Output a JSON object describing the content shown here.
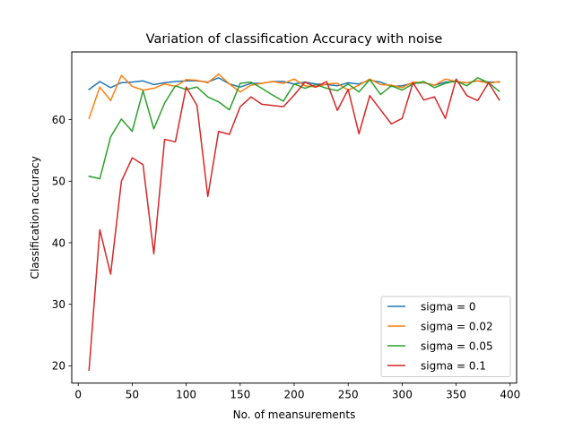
{
  "chart_data": {
    "type": "line",
    "title": "Variation of classification Accuracy with noise",
    "xlabel": "No. of meansurements",
    "ylabel": "Classification accuracy",
    "xlim": [
      -6,
      406
    ],
    "ylim": [
      17.2,
      71.0
    ],
    "xticks": [
      0,
      50,
      100,
      150,
      200,
      250,
      300,
      350,
      400
    ],
    "yticks": [
      20,
      30,
      40,
      50,
      60
    ],
    "grid": false,
    "legend_position": "bottom-right",
    "x": [
      10,
      20,
      30,
      40,
      50,
      60,
      70,
      80,
      90,
      100,
      110,
      120,
      130,
      140,
      150,
      160,
      170,
      180,
      190,
      200,
      210,
      220,
      230,
      240,
      250,
      260,
      270,
      280,
      290,
      300,
      310,
      320,
      330,
      340,
      350,
      360,
      370,
      380,
      390
    ],
    "series": [
      {
        "name": "sigma = 0",
        "color": "#1f77b4",
        "values": [
          64.9,
          66.2,
          65.2,
          66.0,
          66.1,
          66.3,
          65.7,
          66.0,
          66.2,
          66.3,
          66.3,
          66.1,
          66.8,
          65.8,
          65.3,
          65.9,
          65.9,
          66.2,
          66.2,
          65.8,
          66.1,
          65.8,
          65.7,
          65.5,
          66.0,
          65.8,
          66.4,
          66.1,
          65.4,
          65.5,
          65.9,
          66.0,
          65.6,
          66.1,
          66.2,
          66.0,
          66.3,
          66.1,
          66.1
        ]
      },
      {
        "name": "sigma = 0.02",
        "color": "#ff7f0e",
        "values": [
          60.2,
          65.3,
          63.1,
          67.2,
          65.4,
          64.8,
          65.1,
          65.8,
          65.4,
          66.5,
          66.4,
          66.0,
          67.4,
          65.8,
          64.5,
          65.6,
          65.9,
          66.2,
          65.9,
          66.6,
          65.5,
          65.3,
          65.8,
          65.9,
          64.8,
          65.6,
          66.6,
          65.7,
          65.6,
          65.2,
          66.1,
          66.0,
          65.6,
          66.6,
          66.2,
          66.0,
          66.3,
          65.9,
          66.2
        ]
      },
      {
        "name": "sigma = 0.05",
        "color": "#2ca02c",
        "values": [
          50.8,
          50.4,
          57.2,
          60.1,
          58.1,
          64.7,
          58.5,
          62.7,
          65.5,
          64.9,
          65.3,
          63.7,
          62.9,
          61.6,
          65.9,
          66.1,
          65.1,
          64.0,
          63.0,
          65.8,
          65.1,
          65.7,
          65.1,
          64.7,
          65.8,
          64.5,
          66.5,
          64.1,
          65.5,
          64.8,
          65.8,
          66.2,
          65.2,
          65.9,
          66.3,
          65.5,
          66.8,
          66.0,
          64.6
        ]
      },
      {
        "name": "sigma = 0.1",
        "color": "#d62728",
        "values": [
          19.3,
          42.1,
          34.9,
          50.0,
          53.8,
          52.7,
          38.2,
          56.8,
          56.4,
          65.3,
          62.3,
          47.5,
          58.1,
          57.6,
          62.1,
          63.7,
          62.5,
          62.3,
          62.1,
          64.0,
          66.1,
          65.3,
          66.2,
          61.5,
          64.9,
          57.7,
          63.9,
          61.6,
          59.3,
          60.2,
          66.0,
          63.2,
          63.7,
          60.2,
          66.6,
          63.9,
          63.1,
          66.0,
          63.2
        ]
      }
    ]
  }
}
